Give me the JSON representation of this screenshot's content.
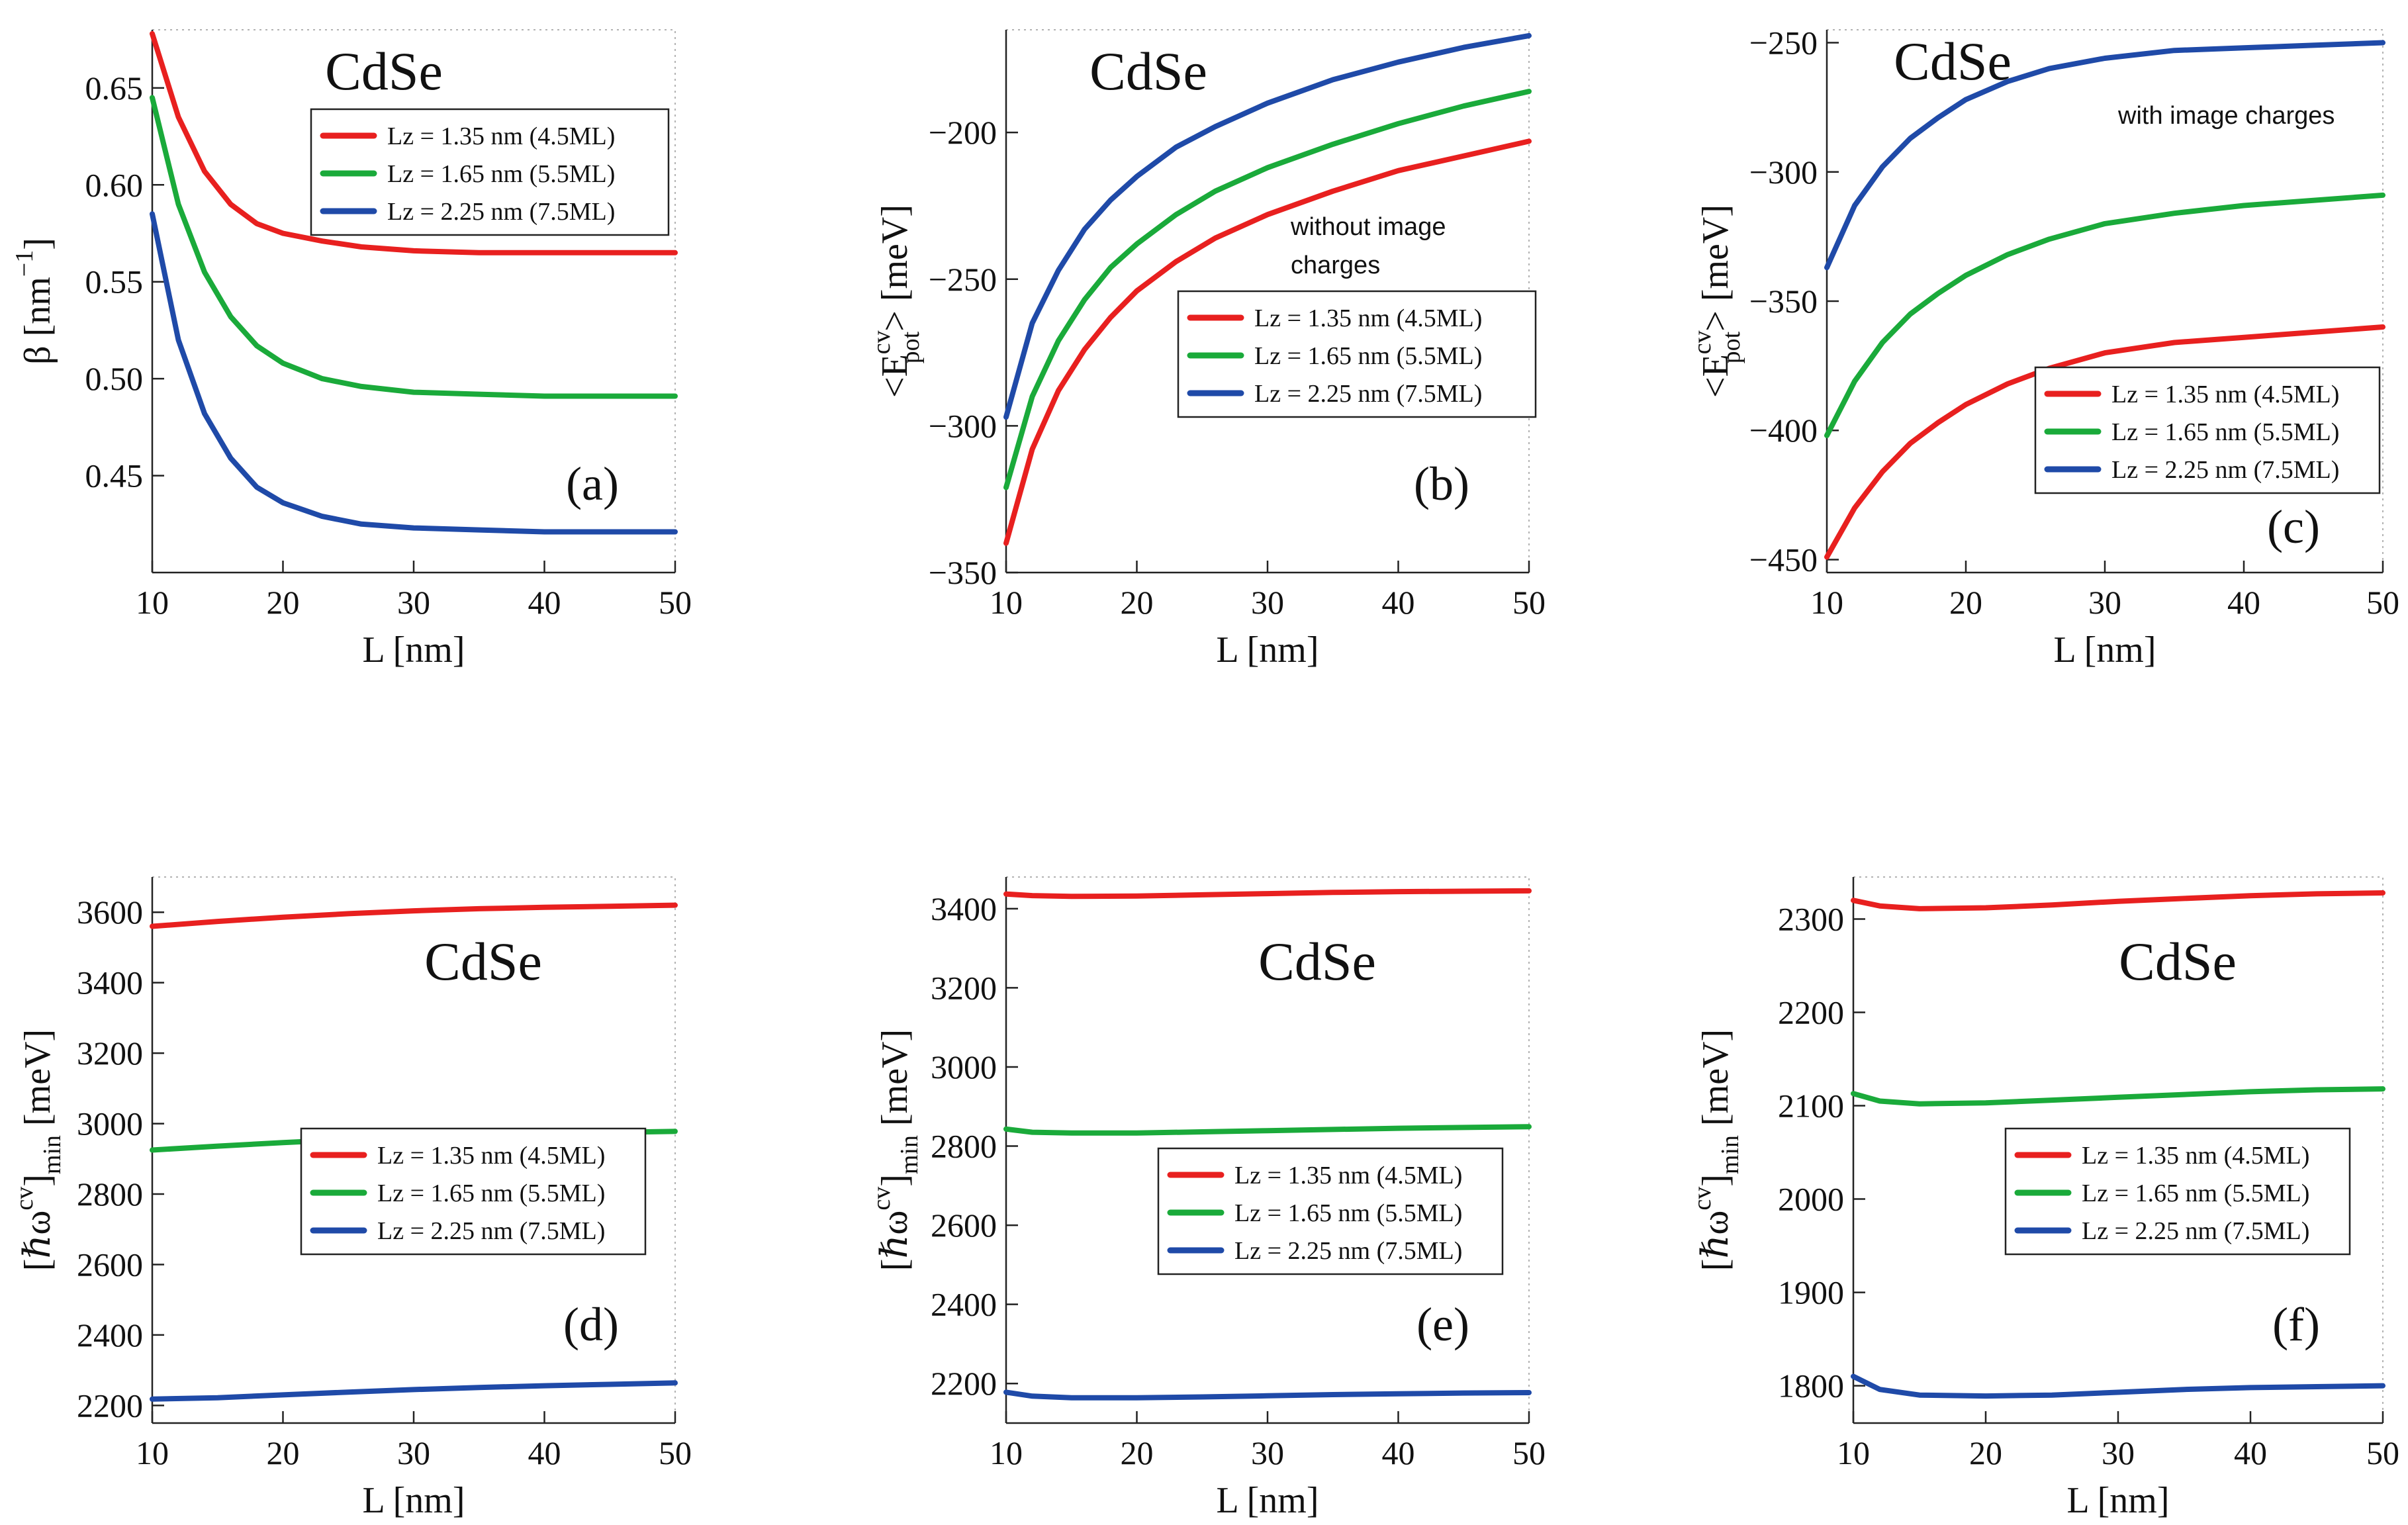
{
  "figure": {
    "panels_count": 6,
    "common_compound": "CdSe"
  },
  "chart_data": [
    {
      "id": "a",
      "type": "line",
      "title": "CdSe",
      "panel_label": "(a)",
      "xlabel": "L [nm]",
      "ylabel_main": "β [nm",
      "ylabel_sup": "−1",
      "ylabel_end": "]",
      "xlim": [
        10,
        50
      ],
      "ylim": [
        0.4,
        0.68
      ],
      "xticks": [
        10,
        20,
        30,
        40,
        50
      ],
      "xtick_labels": [
        "10",
        "20",
        "30",
        "40",
        "50"
      ],
      "yticks": [
        0.45,
        0.5,
        0.55,
        0.6,
        0.65
      ],
      "ytick_labels": [
        "0.45",
        "0.50",
        "0.55",
        "0.60",
        "0.65"
      ],
      "legend_position": "top-right",
      "annotation": null,
      "series": [
        {
          "name": "Lz = 1.35 nm (4.5ML)",
          "color": "#e8201f",
          "x": [
            10,
            12,
            14,
            16,
            18,
            20,
            23,
            26,
            30,
            35,
            40,
            45,
            50
          ],
          "values": [
            0.678,
            0.635,
            0.607,
            0.59,
            0.58,
            0.575,
            0.571,
            0.568,
            0.566,
            0.565,
            0.565,
            0.565,
            0.565
          ]
        },
        {
          "name": "Lz = 1.65 nm (5.5ML)",
          "color": "#1aaa3a",
          "x": [
            10,
            12,
            14,
            16,
            18,
            20,
            23,
            26,
            30,
            35,
            40,
            45,
            50
          ],
          "values": [
            0.645,
            0.59,
            0.555,
            0.532,
            0.517,
            0.508,
            0.5,
            0.496,
            0.493,
            0.492,
            0.491,
            0.491,
            0.491
          ]
        },
        {
          "name": "Lz = 2.25 nm (7.5ML)",
          "color": "#1f4aa8",
          "x": [
            10,
            12,
            14,
            16,
            18,
            20,
            23,
            26,
            30,
            35,
            40,
            45,
            50
          ],
          "values": [
            0.585,
            0.52,
            0.482,
            0.459,
            0.444,
            0.436,
            0.429,
            0.425,
            0.423,
            0.422,
            0.421,
            0.421,
            0.421
          ]
        }
      ]
    },
    {
      "id": "b",
      "type": "line",
      "title": "CdSe",
      "panel_label": "(b)",
      "xlabel": "L [nm]",
      "ylabel_main": "<E",
      "ylabel_sup": "cv",
      "ylabel_sub": "pot",
      "ylabel_end": "> [meV]",
      "xlim": [
        10,
        50
      ],
      "ylim": [
        -350,
        -165
      ],
      "xticks": [
        10,
        20,
        30,
        40,
        50
      ],
      "xtick_labels": [
        "10",
        "20",
        "30",
        "40",
        "50"
      ],
      "yticks": [
        -350,
        -300,
        -250,
        -200
      ],
      "ytick_labels": [
        "−350",
        "−300",
        "−250",
        "−200"
      ],
      "legend_position": "center-right",
      "annotation": [
        "without image",
        "charges"
      ],
      "series": [
        {
          "name": "Lz = 1.35 nm (4.5ML)",
          "color": "#e8201f",
          "x": [
            10,
            12,
            14,
            16,
            18,
            20,
            23,
            26,
            30,
            35,
            40,
            45,
            50
          ],
          "values": [
            -340,
            -308,
            -288,
            -274,
            -263,
            -254,
            -244,
            -236,
            -228,
            -220,
            -213,
            -208,
            -203
          ]
        },
        {
          "name": "Lz = 1.65 nm (5.5ML)",
          "color": "#1aaa3a",
          "x": [
            10,
            12,
            14,
            16,
            18,
            20,
            23,
            26,
            30,
            35,
            40,
            45,
            50
          ],
          "values": [
            -321,
            -290,
            -271,
            -257,
            -246,
            -238,
            -228,
            -220,
            -212,
            -204,
            -197,
            -191,
            -186
          ]
        },
        {
          "name": "Lz = 2.25 nm (7.5ML)",
          "color": "#1f4aa8",
          "x": [
            10,
            12,
            14,
            16,
            18,
            20,
            23,
            26,
            30,
            35,
            40,
            45,
            50
          ],
          "values": [
            -297,
            -265,
            -247,
            -233,
            -223,
            -215,
            -205,
            -198,
            -190,
            -182,
            -176,
            -171,
            -167
          ]
        }
      ]
    },
    {
      "id": "c",
      "type": "line",
      "title": "CdSe",
      "panel_label": "(c)",
      "xlabel": "L [nm]",
      "ylabel_main": "<E",
      "ylabel_sup": "cv",
      "ylabel_sub": "pot",
      "ylabel_end": "> [meV]",
      "xlim": [
        10,
        50
      ],
      "ylim": [
        -455,
        -245
      ],
      "xticks": [
        10,
        20,
        30,
        40,
        50
      ],
      "xtick_labels": [
        "10",
        "20",
        "30",
        "40",
        "50"
      ],
      "yticks": [
        -450,
        -400,
        -350,
        -300,
        -250
      ],
      "ytick_labels": [
        "−450",
        "−400",
        "−350",
        "−300",
        "−250"
      ],
      "legend_position": "lower-right",
      "annotation": [
        "with image charges"
      ],
      "series": [
        {
          "name": "Lz = 1.35 nm (4.5ML)",
          "color": "#e8201f",
          "x": [
            10,
            12,
            14,
            16,
            18,
            20,
            23,
            26,
            30,
            35,
            40,
            45,
            50
          ],
          "values": [
            -449,
            -430,
            -416,
            -405,
            -397,
            -390,
            -382,
            -376,
            -370,
            -366,
            -364,
            -362,
            -360
          ]
        },
        {
          "name": "Lz = 1.65 nm (5.5ML)",
          "color": "#1aaa3a",
          "x": [
            10,
            12,
            14,
            16,
            18,
            20,
            23,
            26,
            30,
            35,
            40,
            45,
            50
          ],
          "values": [
            -402,
            -381,
            -366,
            -355,
            -347,
            -340,
            -332,
            -326,
            -320,
            -316,
            -313,
            -311,
            -309
          ]
        },
        {
          "name": "Lz = 2.25 nm (7.5ML)",
          "color": "#1f4aa8",
          "x": [
            10,
            12,
            14,
            16,
            18,
            20,
            23,
            26,
            30,
            35,
            40,
            45,
            50
          ],
          "values": [
            -337,
            -313,
            -298,
            -287,
            -279,
            -272,
            -265,
            -260,
            -256,
            -253,
            -252,
            -251,
            -250
          ]
        }
      ]
    },
    {
      "id": "d",
      "type": "line",
      "title": "CdSe",
      "panel_label": "(d)",
      "xlabel": "L [nm]",
      "ylabel_main": "[ℏω",
      "ylabel_sup": "cv",
      "ylabel_end": "]",
      "ylabel_sub2": "min",
      "ylabel_end2": " [meV]",
      "xlim": [
        10,
        50
      ],
      "ylim": [
        2150,
        3700
      ],
      "xticks": [
        10,
        20,
        30,
        40,
        50
      ],
      "xtick_labels": [
        "10",
        "20",
        "30",
        "40",
        "50"
      ],
      "yticks": [
        2200,
        2400,
        2600,
        2800,
        3000,
        3200,
        3400,
        3600
      ],
      "ytick_labels": [
        "2200",
        "2400",
        "2600",
        "2800",
        "3000",
        "3200",
        "3400",
        "3600"
      ],
      "legend_position": "lower-right",
      "annotation": null,
      "series": [
        {
          "name": "Lz = 1.35 nm (4.5ML)",
          "color": "#e8201f",
          "x": [
            10,
            15,
            20,
            25,
            30,
            35,
            40,
            45,
            50
          ],
          "values": [
            3560,
            3574,
            3586,
            3596,
            3604,
            3610,
            3614,
            3617,
            3620
          ]
        },
        {
          "name": "Lz = 1.65 nm (5.5ML)",
          "color": "#1aaa3a",
          "x": [
            10,
            15,
            20,
            25,
            30,
            35,
            40,
            45,
            50
          ],
          "values": [
            2925,
            2936,
            2946,
            2955,
            2962,
            2968,
            2972,
            2975,
            2978
          ]
        },
        {
          "name": "Lz = 2.25 nm (7.5ML)",
          "color": "#1f4aa8",
          "x": [
            10,
            15,
            20,
            25,
            30,
            35,
            40,
            45,
            50
          ],
          "values": [
            2218,
            2222,
            2230,
            2238,
            2245,
            2251,
            2256,
            2260,
            2264
          ]
        }
      ]
    },
    {
      "id": "e",
      "type": "line",
      "title": "CdSe",
      "panel_label": "(e)",
      "xlabel": "L [nm]",
      "ylabel_main": "[ℏω",
      "ylabel_sup": "cv",
      "ylabel_end": "]",
      "ylabel_sub2": "min",
      "ylabel_end2": " [meV]",
      "xlim": [
        10,
        50
      ],
      "ylim": [
        2100,
        3480
      ],
      "xticks": [
        10,
        20,
        30,
        40,
        50
      ],
      "xtick_labels": [
        "10",
        "20",
        "30",
        "40",
        "50"
      ],
      "yticks": [
        2200,
        2400,
        2600,
        2800,
        3000,
        3200,
        3400
      ],
      "ytick_labels": [
        "2200",
        "2400",
        "2600",
        "2800",
        "3000",
        "3200",
        "3400"
      ],
      "legend_position": "lower-right",
      "annotation": null,
      "series": [
        {
          "name": "Lz = 1.35 nm (4.5ML)",
          "color": "#e8201f",
          "x": [
            10,
            12,
            15,
            20,
            25,
            30,
            35,
            40,
            45,
            50
          ],
          "values": [
            3437,
            3433,
            3431,
            3432,
            3435,
            3438,
            3441,
            3443,
            3444,
            3445
          ]
        },
        {
          "name": "Lz = 1.65 nm (5.5ML)",
          "color": "#1aaa3a",
          "x": [
            10,
            12,
            15,
            20,
            25,
            30,
            35,
            40,
            45,
            50
          ],
          "values": [
            2843,
            2835,
            2833,
            2833,
            2836,
            2839,
            2842,
            2845,
            2847,
            2849
          ]
        },
        {
          "name": "Lz = 2.25 nm (7.5ML)",
          "color": "#1f4aa8",
          "x": [
            10,
            12,
            15,
            20,
            25,
            30,
            35,
            40,
            45,
            50
          ],
          "values": [
            2178,
            2168,
            2164,
            2164,
            2166,
            2169,
            2172,
            2174,
            2176,
            2177
          ]
        }
      ]
    },
    {
      "id": "f",
      "type": "line",
      "title": "CdSe",
      "panel_label": "(f)",
      "xlabel": "L [nm]",
      "ylabel_main": "[ℏω",
      "ylabel_sup": "cv",
      "ylabel_end": "]",
      "ylabel_sub2": "min",
      "ylabel_end2": " [meV]",
      "xlim": [
        10,
        50
      ],
      "ylim": [
        1760,
        2345
      ],
      "xticks": [
        10,
        20,
        30,
        40,
        50
      ],
      "xtick_labels": [
        "10",
        "20",
        "30",
        "40",
        "50"
      ],
      "yticks": [
        1800,
        1900,
        2000,
        2100,
        2200,
        2300
      ],
      "ytick_labels": [
        "1800",
        "1900",
        "2000",
        "2100",
        "2200",
        "2300"
      ],
      "legend_position": "lower-right",
      "annotation": null,
      "series": [
        {
          "name": "Lz = 1.35 nm (4.5ML)",
          "color": "#e8201f",
          "x": [
            10,
            12,
            15,
            20,
            25,
            30,
            35,
            40,
            45,
            50
          ],
          "values": [
            2320,
            2314,
            2311,
            2312,
            2315,
            2319,
            2322,
            2325,
            2327,
            2328
          ]
        },
        {
          "name": "Lz = 1.65 nm (5.5ML)",
          "color": "#1aaa3a",
          "x": [
            10,
            12,
            15,
            20,
            25,
            30,
            35,
            40,
            45,
            50
          ],
          "values": [
            2113,
            2105,
            2102,
            2103,
            2106,
            2109,
            2112,
            2115,
            2117,
            2118
          ]
        },
        {
          "name": "Lz = 2.25 nm (7.5ML)",
          "color": "#1f4aa8",
          "x": [
            10,
            12,
            15,
            20,
            25,
            30,
            35,
            40,
            45,
            50
          ],
          "values": [
            1810,
            1796,
            1790,
            1789,
            1790,
            1793,
            1796,
            1798,
            1799,
            1800
          ]
        }
      ]
    }
  ]
}
